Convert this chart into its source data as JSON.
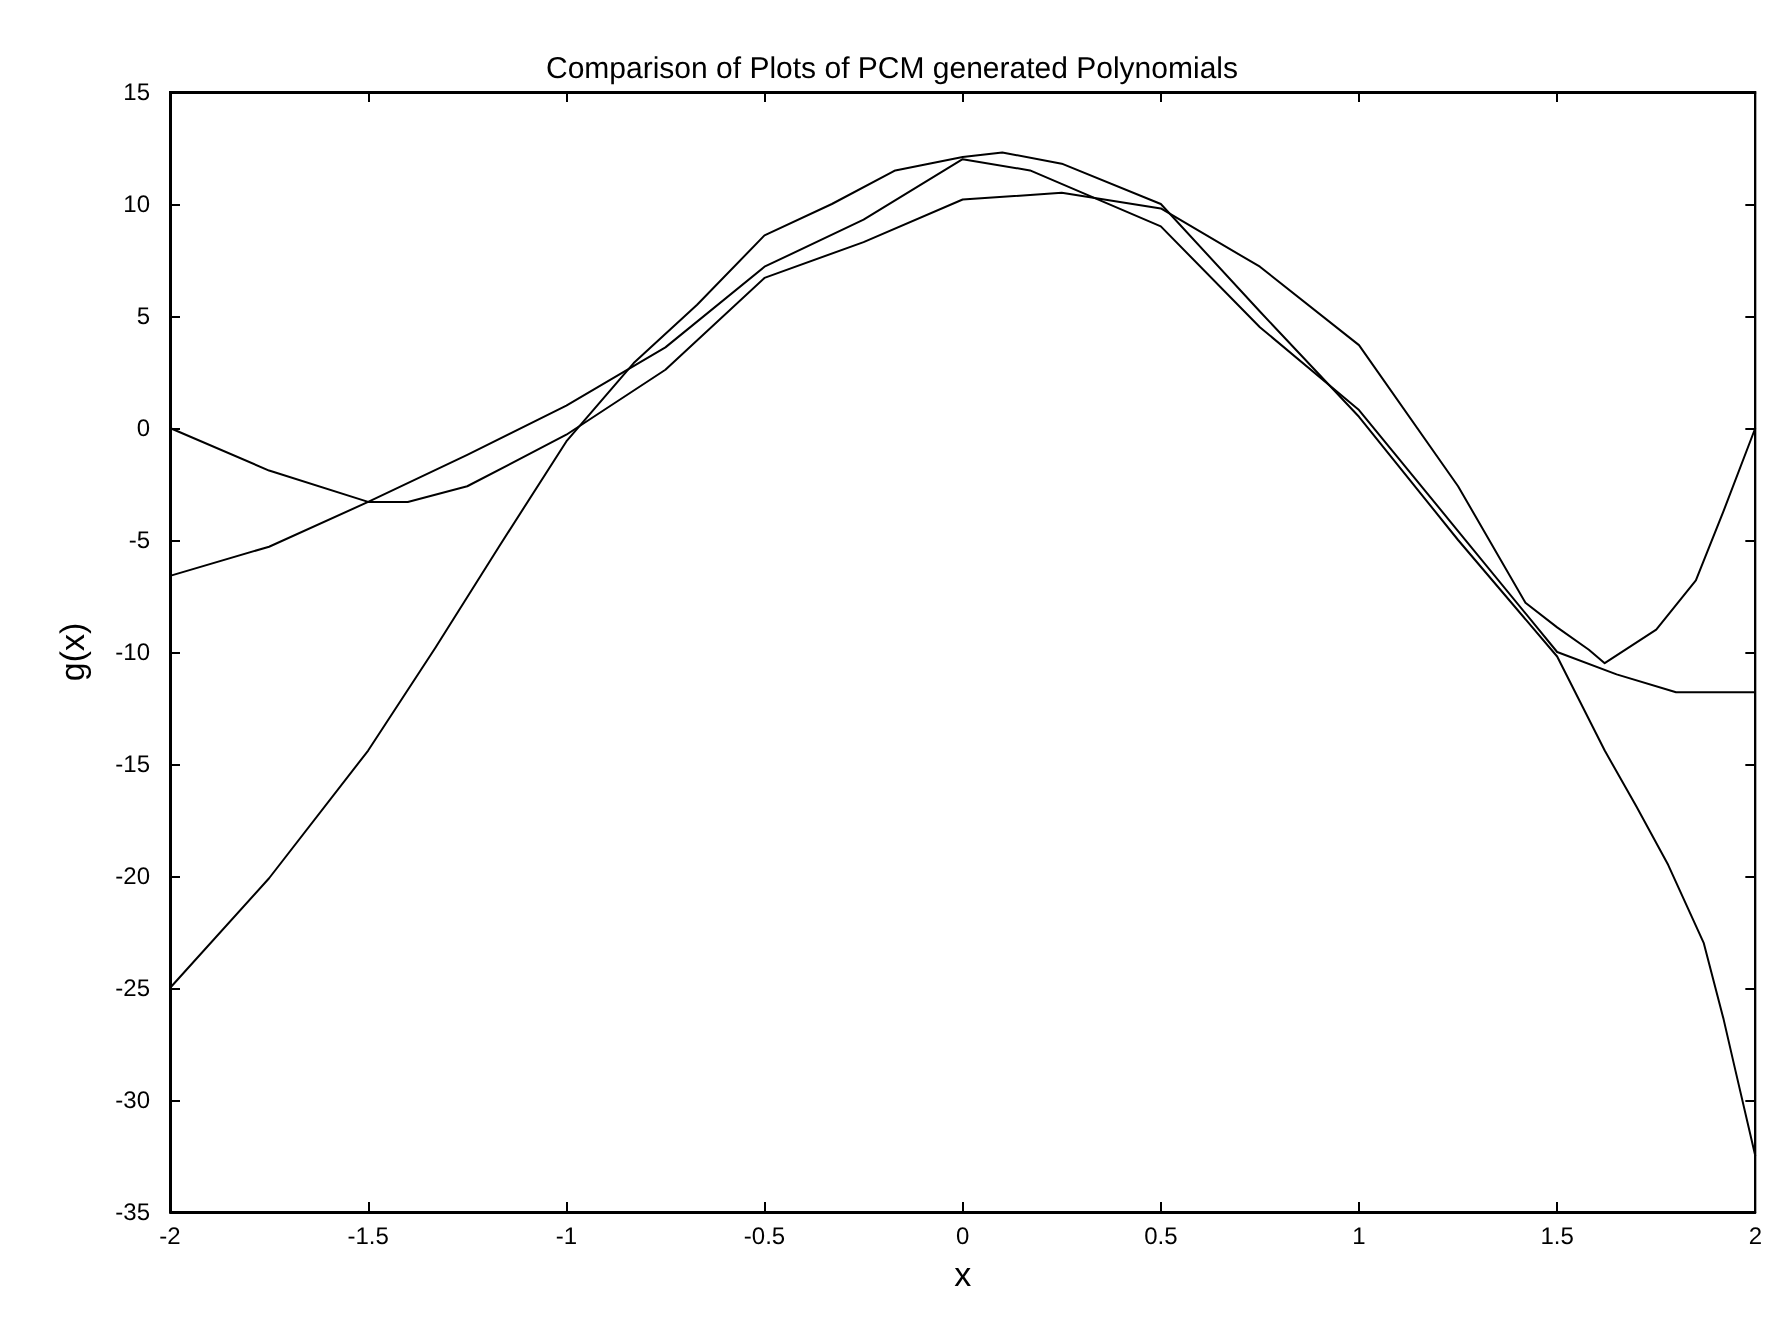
{
  "chart_data": {
    "type": "line",
    "title": "Comparison of Plots of PCM generated Polynomials",
    "xlabel": "x",
    "ylabel": "g(x)",
    "xlim": [
      -2,
      2
    ],
    "xticks": [
      -2,
      -1.5,
      -1,
      -0.5,
      0,
      0.5,
      1,
      1.5,
      2
    ],
    "ylim": [
      -35,
      15
    ],
    "yticks": [
      -35,
      -30,
      -25,
      -20,
      -15,
      -10,
      -5,
      0,
      5,
      10,
      15
    ],
    "grid": false,
    "marker": "none",
    "line_style": "solid",
    "series": [
      {
        "color": "#000000",
        "x": [
          -2,
          -1.75,
          -1.5,
          -1.4,
          -1.25,
          -1,
          -0.75,
          -0.5,
          -0.25,
          0,
          0.25,
          0.5,
          0.75,
          1,
          1.25,
          1.42,
          1.5,
          1.58,
          1.62,
          1.75,
          1.85,
          1.92,
          2
        ],
        "values": [
          0,
          -1.9,
          -3.3,
          -3.3,
          -2.6,
          -0.3,
          2.6,
          6.7,
          8.3,
          10.2,
          10.5,
          9.8,
          7.2,
          3.7,
          -2.6,
          -7.8,
          -8.9,
          -9.9,
          -10.5,
          -9.0,
          -6.8,
          -3.7,
          0
        ]
      },
      {
        "color": "#000000",
        "x": [
          -2,
          -1.75,
          -1.5,
          -1.25,
          -1,
          -0.75,
          -0.5,
          -0.25,
          0,
          0.17,
          0.5,
          0.75,
          1,
          1.25,
          1.5,
          1.65,
          1.8,
          2
        ],
        "values": [
          -6.6,
          -5.3,
          -3.3,
          -1.2,
          1.0,
          3.6,
          7.2,
          9.3,
          12.0,
          11.5,
          9.0,
          4.5,
          0.8,
          -4.6,
          -10.0,
          -11.0,
          -11.8,
          -11.8
        ]
      },
      {
        "color": "#000000",
        "x": [
          -2,
          -1.75,
          -1.5,
          -1.33,
          -1.17,
          -1,
          -0.83,
          -0.67,
          -0.5,
          -0.33,
          -0.17,
          0,
          0.1,
          0.25,
          0.5,
          0.75,
          1,
          1.25,
          1.5,
          1.62,
          1.7,
          1.78,
          1.87,
          1.92,
          1.95,
          2
        ],
        "values": [
          -25,
          -20.1,
          -14.4,
          -9.8,
          -5.3,
          -0.6,
          2.9,
          5.5,
          8.6,
          10,
          11.5,
          12.1,
          12.3,
          11.8,
          10.0,
          5.2,
          0.5,
          -5.0,
          -10.2,
          -14.4,
          -16.9,
          -19.5,
          -23.0,
          -26.4,
          -28.7,
          -32.5
        ]
      }
    ]
  }
}
